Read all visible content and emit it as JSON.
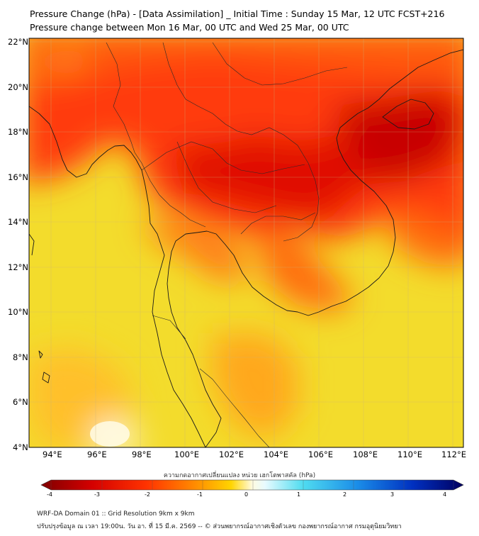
{
  "title": {
    "line1": "Pressure Change (hPa) - [Data Assimilation] _ Initial Time : Sunday 15 Mar, 12 UTC FCST+216",
    "line2": "Pressure change between Mon 16 Mar, 00 UTC and Wed 25 Mar, 00 UTC"
  },
  "map": {
    "lat_labels": [
      "22°N",
      "20°N",
      "18°N",
      "16°N",
      "14°N",
      "12°N",
      "10°N",
      "8°N",
      "6°N",
      "4°N"
    ],
    "lon_labels": [
      "94°E",
      "96°E",
      "98°E",
      "100°E",
      "102°E",
      "104°E",
      "106°E",
      "108°E",
      "110°E",
      "112°E"
    ],
    "lat_range": [
      4,
      22.2
    ],
    "lon_range": [
      93,
      112.4
    ]
  },
  "colorbar": {
    "title": "ความกดอากาศเปลี่ยนแปลง หน่วย เฮกโตพาสคัล (hPa)",
    "ticks": [
      "-4",
      "-3",
      "-2",
      "-1",
      "0",
      "1",
      "2",
      "3",
      "4"
    ],
    "range": [
      -4,
      4
    ],
    "colors": [
      "#7f0000",
      "#d40000",
      "#ff3300",
      "#ff8c00",
      "#ffd000",
      "#fff5a0",
      "#ffffff",
      "#c8f5ff",
      "#40d8f0",
      "#1a90e8",
      "#0030c0",
      "#000060"
    ]
  },
  "footer": {
    "line1": "WRF-DA Domain 01 :: Grid Resolution 9km x 9km",
    "line2": "ปรับปรุงข้อมูล ณ เวลา 19:00น. วัน อา. ที่ 15 มี.ค. 2569 -- © ส่วนพยากรณ์อากาศเชิงตัวเลข กองพยากรณ์อากาศ กรมอุตุนิยมวิทยา"
  }
}
